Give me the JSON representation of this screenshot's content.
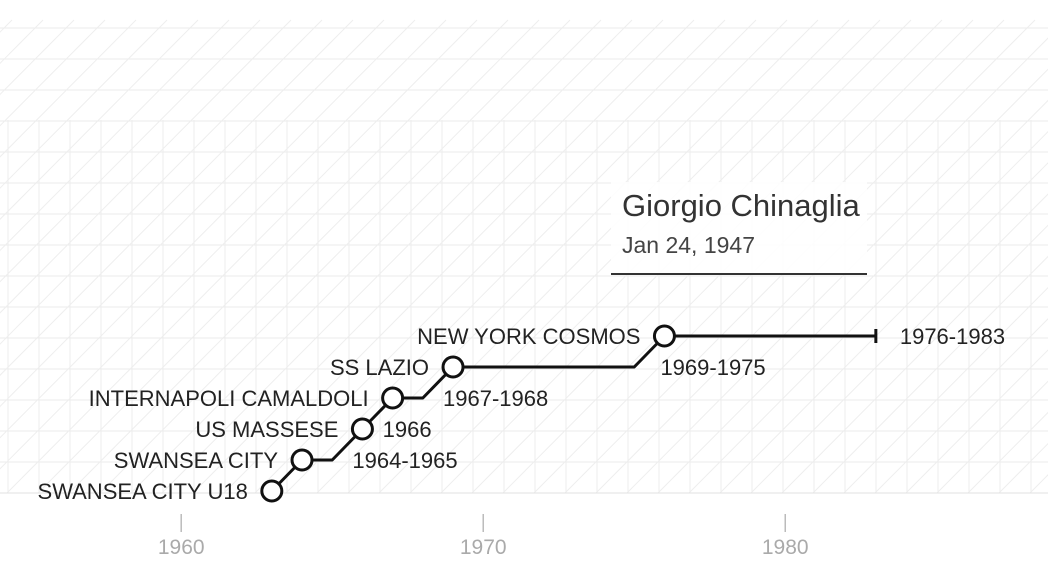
{
  "player": {
    "name": "Giorgio Chinaglia",
    "birth_date": "Jan 24, 1947"
  },
  "chart_data": {
    "type": "line",
    "title": "",
    "xlabel": "",
    "ylabel": "",
    "xlim": [
      1954,
      1988.7
    ],
    "x_ticks": [
      1960,
      1970,
      1980
    ],
    "x_tick_labels": [
      "1960",
      "1970",
      "1980"
    ],
    "grid": true,
    "career_end_year": 1983,
    "line_color": "#111111",
    "clubs": [
      {
        "name": "SWANSEA CITY U18",
        "period": "",
        "join_year": 1963
      },
      {
        "name": "SWANSEA CITY",
        "period": "1964-1965",
        "join_year": 1964
      },
      {
        "name": "US MASSESE",
        "period": "1966",
        "join_year": 1966
      },
      {
        "name": "INTERNAPOLI CAMALDOLI",
        "period": "1967-1968",
        "join_year": 1967
      },
      {
        "name": "SS LAZIO",
        "period": "1969-1975",
        "join_year": 1969
      },
      {
        "name": "NEW YORK COSMOS",
        "period": "1976-1983",
        "join_year": 1976
      }
    ]
  }
}
